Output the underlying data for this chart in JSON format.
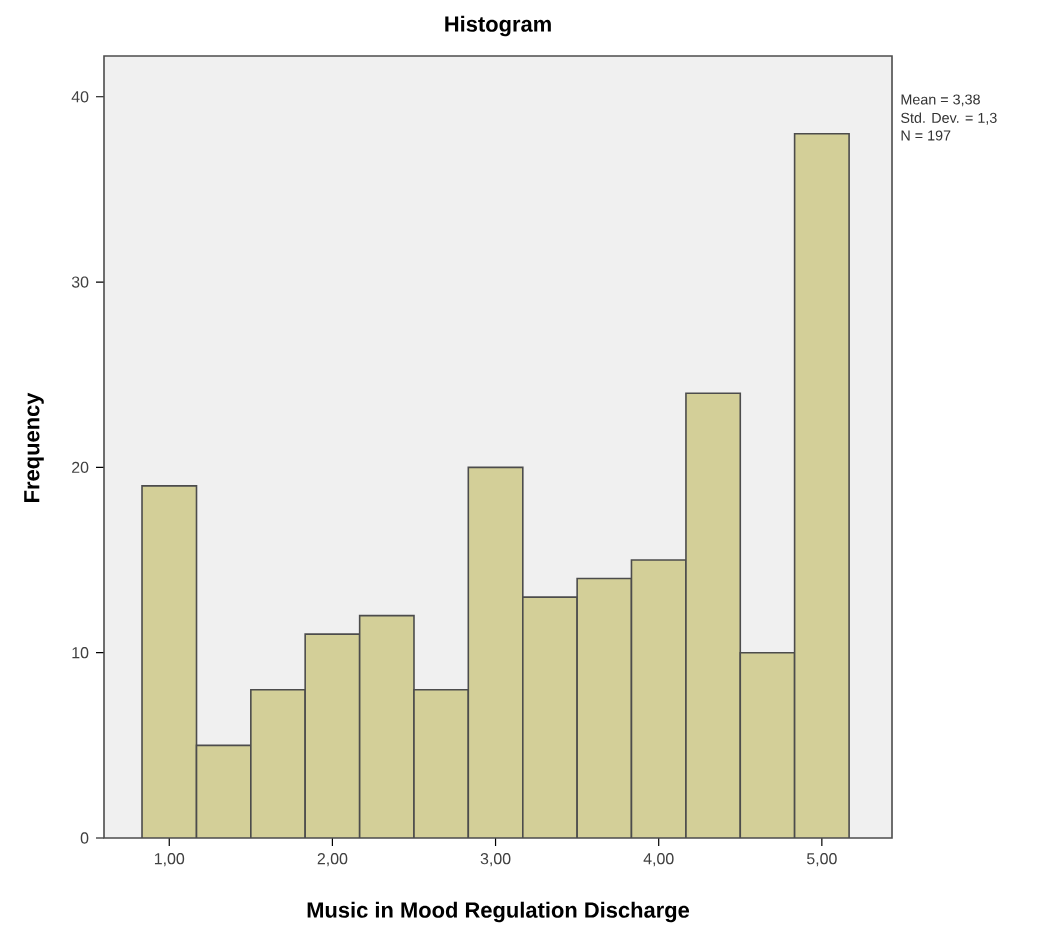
{
  "chart_data": {
    "type": "histogram",
    "title": "Histogram",
    "xlabel": "Music in Mood Regulation Discharge",
    "ylabel": "Frequency",
    "bins": [
      0.833,
      1.167,
      1.5,
      1.833,
      2.167,
      2.5,
      2.833,
      3.167,
      3.5,
      3.833,
      4.167,
      4.5,
      4.833,
      5.167
    ],
    "values": [
      19,
      5,
      8,
      11,
      12,
      8,
      20,
      13,
      14,
      15,
      24,
      10,
      38
    ],
    "color": "#d3cf98",
    "xlim": [
      0.6,
      5.43
    ],
    "ylim": [
      0,
      42.2
    ],
    "xticks": [
      {
        "value": 1,
        "label": "1,00"
      },
      {
        "value": 2,
        "label": "2,00"
      },
      {
        "value": 3,
        "label": "3,00"
      },
      {
        "value": 4,
        "label": "4,00"
      },
      {
        "value": 5,
        "label": "5,00"
      }
    ],
    "yticks": [
      0,
      10,
      20,
      30,
      40
    ],
    "grid": false,
    "annotations": [
      "Mean = 3,38",
      "Std. Dev. = 1,3",
      "N = 197"
    ]
  }
}
